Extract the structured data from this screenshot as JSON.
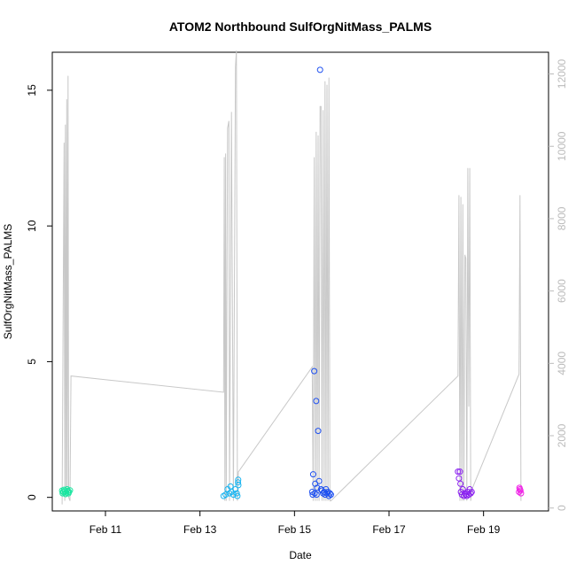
{
  "chart_data": {
    "type": "scatter",
    "title": "ATOM2 Northbound SulfOrgNitMass_PALMS",
    "xlabel": "Date",
    "ylabel": "SulfOrgNitMass_PALMS",
    "x_axis": {
      "type": "date",
      "range": [
        "2017-02-09T21:00",
        "2017-02-20T09:00"
      ],
      "ticks": [
        {
          "value": "2017-02-11",
          "label": "Feb 11"
        },
        {
          "value": "2017-02-13",
          "label": "Feb 13"
        },
        {
          "value": "2017-02-15",
          "label": "Feb 15"
        },
        {
          "value": "2017-02-17",
          "label": "Feb 17"
        },
        {
          "value": "2017-02-19",
          "label": "Feb 19"
        }
      ]
    },
    "y_left": {
      "range": [
        -0.5,
        16.4
      ],
      "ticks": [
        0,
        5,
        10,
        15
      ]
    },
    "y_right": {
      "range": [
        -80,
        12600
      ],
      "ticks": [
        0,
        2000,
        4000,
        6000,
        8000,
        10000,
        12000
      ],
      "color": "#bbbbbb"
    },
    "grid": false,
    "colors": {
      "altitude_line": "#c8c8c8",
      "axis": "#000000",
      "flight_colors": [
        "#19e6a0",
        "#19b4f0",
        "#1e50f0",
        "#8a20f0",
        "#f01ee6"
      ]
    },
    "altitude_trace": [
      [
        "2017-02-10T02:00",
        100
      ],
      [
        "2017-02-10T03:00",
        10100
      ],
      [
        "2017-02-10T03:20",
        200
      ],
      [
        "2017-02-10T03:40",
        10600
      ],
      [
        "2017-02-10T04:00",
        300
      ],
      [
        "2017-02-10T04:20",
        11300
      ],
      [
        "2017-02-10T04:40",
        400
      ],
      [
        "2017-02-10T05:00",
        11950
      ],
      [
        "2017-02-10T05:20",
        300
      ],
      [
        "2017-02-10T06:00",
        200
      ],
      [
        "2017-02-10T06:30",
        3650
      ],
      [
        "2017-02-13T12:00",
        3200
      ],
      [
        "2017-02-13T12:20",
        9700
      ],
      [
        "2017-02-13T12:40",
        200
      ],
      [
        "2017-02-13T13:00",
        9800
      ],
      [
        "2017-02-13T13:20",
        200
      ],
      [
        "2017-02-13T14:00",
        10500
      ],
      [
        "2017-02-13T14:40",
        10700
      ],
      [
        "2017-02-13T15:00",
        200
      ],
      [
        "2017-02-13T16:00",
        10950
      ],
      [
        "2017-02-13T17:00",
        200
      ],
      [
        "2017-02-13T18:00",
        12200
      ],
      [
        "2017-02-13T18:30",
        12650
      ],
      [
        "2017-02-13T19:00",
        200
      ],
      [
        "2017-02-13T19:30",
        1000
      ],
      [
        "2017-02-15T09:00",
        3900
      ],
      [
        "2017-02-15T09:30",
        200
      ],
      [
        "2017-02-15T10:00",
        9700
      ],
      [
        "2017-02-15T10:30",
        200
      ],
      [
        "2017-02-15T11:00",
        10400
      ],
      [
        "2017-02-15T11:30",
        200
      ],
      [
        "2017-02-15T12:00",
        10300
      ],
      [
        "2017-02-15T12:30",
        200
      ],
      [
        "2017-02-15T13:00",
        11100
      ],
      [
        "2017-02-15T13:30",
        11100
      ],
      [
        "2017-02-15T14:00",
        200
      ],
      [
        "2017-02-15T14:30",
        11000
      ],
      [
        "2017-02-15T15:00",
        200
      ],
      [
        "2017-02-15T15:30",
        11800
      ],
      [
        "2017-02-15T16:00",
        200
      ],
      [
        "2017-02-15T16:30",
        11700
      ],
      [
        "2017-02-15T17:00",
        200
      ],
      [
        "2017-02-15T17:30",
        11900
      ],
      [
        "2017-02-15T18:00",
        200
      ],
      [
        "2017-02-15T18:30",
        200
      ],
      [
        "2017-02-18T11:00",
        3650
      ],
      [
        "2017-02-18T11:30",
        8650
      ],
      [
        "2017-02-18T12:00",
        200
      ],
      [
        "2017-02-18T12:30",
        8600
      ],
      [
        "2017-02-18T13:00",
        200
      ],
      [
        "2017-02-18T13:30",
        8400
      ],
      [
        "2017-02-18T14:00",
        200
      ],
      [
        "2017-02-18T14:30",
        7000
      ],
      [
        "2017-02-18T15:00",
        6900
      ],
      [
        "2017-02-18T15:30",
        200
      ],
      [
        "2017-02-18T16:00",
        9400
      ],
      [
        "2017-02-18T16:30",
        2800
      ],
      [
        "2017-02-18T17:00",
        9400
      ],
      [
        "2017-02-18T17:30",
        200
      ],
      [
        "2017-02-18T18:00",
        500
      ],
      [
        "2017-02-19T18:00",
        3700
      ],
      [
        "2017-02-19T18:30",
        8650
      ],
      [
        "2017-02-19T19:00",
        200
      ]
    ],
    "series": [
      {
        "values": [
          [
            "2017-02-10T02:00",
            0.25
          ],
          [
            "2017-02-10T02:30",
            0.2
          ],
          [
            "2017-02-10T03:00",
            0.28
          ],
          [
            "2017-02-10T03:30",
            0.22
          ],
          [
            "2017-02-10T04:00",
            0.18
          ],
          [
            "2017-02-10T04:30",
            0.3
          ],
          [
            "2017-02-10T05:00",
            0.24
          ],
          [
            "2017-02-10T05:30",
            0.2
          ],
          [
            "2017-02-10T06:00",
            0.26
          ],
          [
            "2017-02-10T02:15",
            0.15
          ],
          [
            "2017-02-10T03:45",
            0.12
          ],
          [
            "2017-02-10T05:15",
            0.15
          ]
        ]
      },
      {
        "values": [
          [
            "2017-02-13T12:00",
            0.05
          ],
          [
            "2017-02-13T13:00",
            0.1
          ],
          [
            "2017-02-13T14:00",
            0.3
          ],
          [
            "2017-02-13T15:00",
            0.15
          ],
          [
            "2017-02-13T15:30",
            0.4
          ],
          [
            "2017-02-13T16:00",
            0.2
          ],
          [
            "2017-02-13T17:00",
            0.1
          ],
          [
            "2017-02-13T18:00",
            0.3
          ],
          [
            "2017-02-13T18:40",
            0.15
          ],
          [
            "2017-02-13T19:00",
            0.05
          ],
          [
            "2017-02-13T19:20",
            0.55
          ],
          [
            "2017-02-13T19:25",
            0.65
          ],
          [
            "2017-02-13T19:30",
            0.45
          ]
        ]
      },
      {
        "values": [
          [
            "2017-02-15T09:00",
            0.2
          ],
          [
            "2017-02-15T09:30",
            0.85
          ],
          [
            "2017-02-15T10:00",
            4.65
          ],
          [
            "2017-02-15T11:00",
            3.55
          ],
          [
            "2017-02-15T12:00",
            2.45
          ],
          [
            "2017-02-15T13:00",
            15.75
          ],
          [
            "2017-02-15T10:30",
            0.5
          ],
          [
            "2017-02-15T11:30",
            0.35
          ],
          [
            "2017-02-15T12:30",
            0.6
          ],
          [
            "2017-02-15T13:30",
            0.3
          ],
          [
            "2017-02-15T14:00",
            0.25
          ],
          [
            "2017-02-15T14:30",
            0.15
          ],
          [
            "2017-02-15T15:00",
            0.2
          ],
          [
            "2017-02-15T15:30",
            0.1
          ],
          [
            "2017-02-15T16:00",
            0.3
          ],
          [
            "2017-02-15T16:30",
            0.15
          ],
          [
            "2017-02-15T17:00",
            0.2
          ],
          [
            "2017-02-15T17:30",
            0.05
          ],
          [
            "2017-02-15T18:00",
            0.15
          ],
          [
            "2017-02-15T18:30",
            0.1
          ],
          [
            "2017-02-15T09:15",
            0.1
          ],
          [
            "2017-02-15T10:15",
            0.15
          ],
          [
            "2017-02-15T11:15",
            0.1
          ]
        ]
      },
      {
        "values": [
          [
            "2017-02-18T11:00",
            0.95
          ],
          [
            "2017-02-18T11:30",
            0.7
          ],
          [
            "2017-02-18T12:00",
            0.95
          ],
          [
            "2017-02-18T12:15",
            0.5
          ],
          [
            "2017-02-18T12:30",
            0.2
          ],
          [
            "2017-02-18T13:00",
            0.1
          ],
          [
            "2017-02-18T13:30",
            0.3
          ],
          [
            "2017-02-18T14:00",
            0.05
          ],
          [
            "2017-02-18T14:30",
            0.15
          ],
          [
            "2017-02-18T15:00",
            0.1
          ],
          [
            "2017-02-18T15:30",
            0.05
          ],
          [
            "2017-02-18T16:00",
            0.2
          ],
          [
            "2017-02-18T16:30",
            0.1
          ],
          [
            "2017-02-18T17:00",
            0.3
          ],
          [
            "2017-02-18T17:30",
            0.15
          ],
          [
            "2017-02-18T18:00",
            0.2
          ]
        ]
      },
      {
        "values": [
          [
            "2017-02-19T18:00",
            0.2
          ],
          [
            "2017-02-19T18:15",
            0.35
          ],
          [
            "2017-02-19T18:30",
            0.3
          ],
          [
            "2017-02-19T18:45",
            0.25
          ],
          [
            "2017-02-19T19:00",
            0.15
          ]
        ]
      }
    ]
  }
}
